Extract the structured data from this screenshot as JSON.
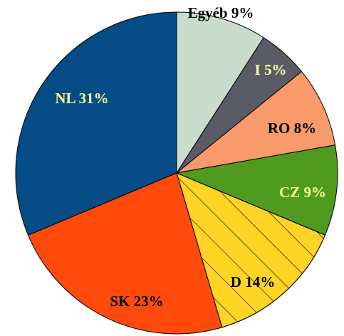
{
  "chart_data": {
    "type": "pie",
    "values": [
      9,
      5,
      8,
      9,
      14,
      23,
      31
    ],
    "value_labels": [
      "Egyéb 9%",
      "I 5%",
      "RO 8%",
      "CZ 9%",
      "D 14%",
      "SK 23%",
      "NL 31%"
    ],
    "colors": [
      "#c9dccd",
      "#5b5b67",
      "#f99a6b",
      "#4f9a1f",
      "#ffd424",
      "#ff4a0c",
      "#054b85"
    ],
    "label_colors": [
      "#000000",
      "#ffff99",
      "#000000",
      "#ffff99",
      "#000000",
      "#000000",
      "#ffff99"
    ],
    "hatch": [
      false,
      false,
      false,
      false,
      true,
      false,
      false
    ]
  }
}
